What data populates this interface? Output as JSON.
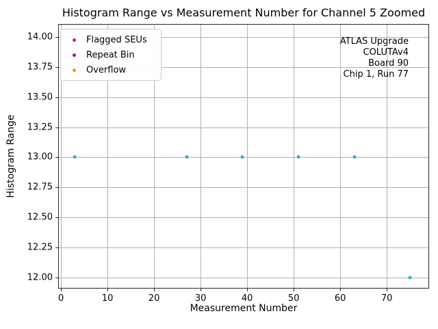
{
  "chart_data": {
    "type": "scatter",
    "title": "Histogram Range vs Measurement Number for Channel 5 Zoomed",
    "xlabel": "Measurement Number",
    "ylabel": "Histogram Range",
    "xlim": [
      -0.6,
      79.1
    ],
    "ylim": [
      11.906,
      14.111
    ],
    "xticks": [
      0,
      10,
      20,
      30,
      40,
      50,
      60,
      70
    ],
    "yticks": [
      12.0,
      12.25,
      12.5,
      12.75,
      13.0,
      13.25,
      13.5,
      13.75,
      14.0
    ],
    "ytick_decimals": 2,
    "grid": true,
    "grid_color": "#b0b0b0",
    "background_color": "#ffffff",
    "legend": {
      "position": "upper-left",
      "entries": [
        {
          "label": "Flagged SEUs",
          "color": "#d62728",
          "marker": "dot-icon"
        },
        {
          "label": "Repeat Bin",
          "color": "#8e189e",
          "marker": "dot-icon"
        },
        {
          "label": "Overflow",
          "color": "#ff8c00",
          "marker": "dot-icon"
        }
      ]
    },
    "series": [
      {
        "name": "histogram-range",
        "color": "#22b5c6",
        "marker": "dot",
        "points": [
          {
            "x": 3,
            "y": 13.0
          },
          {
            "x": 27,
            "y": 13.0
          },
          {
            "x": 39,
            "y": 13.0
          },
          {
            "x": 51,
            "y": 13.0
          },
          {
            "x": 63,
            "y": 13.0
          },
          {
            "x": 75,
            "y": 12.0
          }
        ]
      }
    ],
    "annotation": {
      "align": "right",
      "lines": [
        "ATLAS Upgrade",
        "COLUTAv4",
        "Board 90",
        "Chip 1, Run 77"
      ]
    }
  }
}
